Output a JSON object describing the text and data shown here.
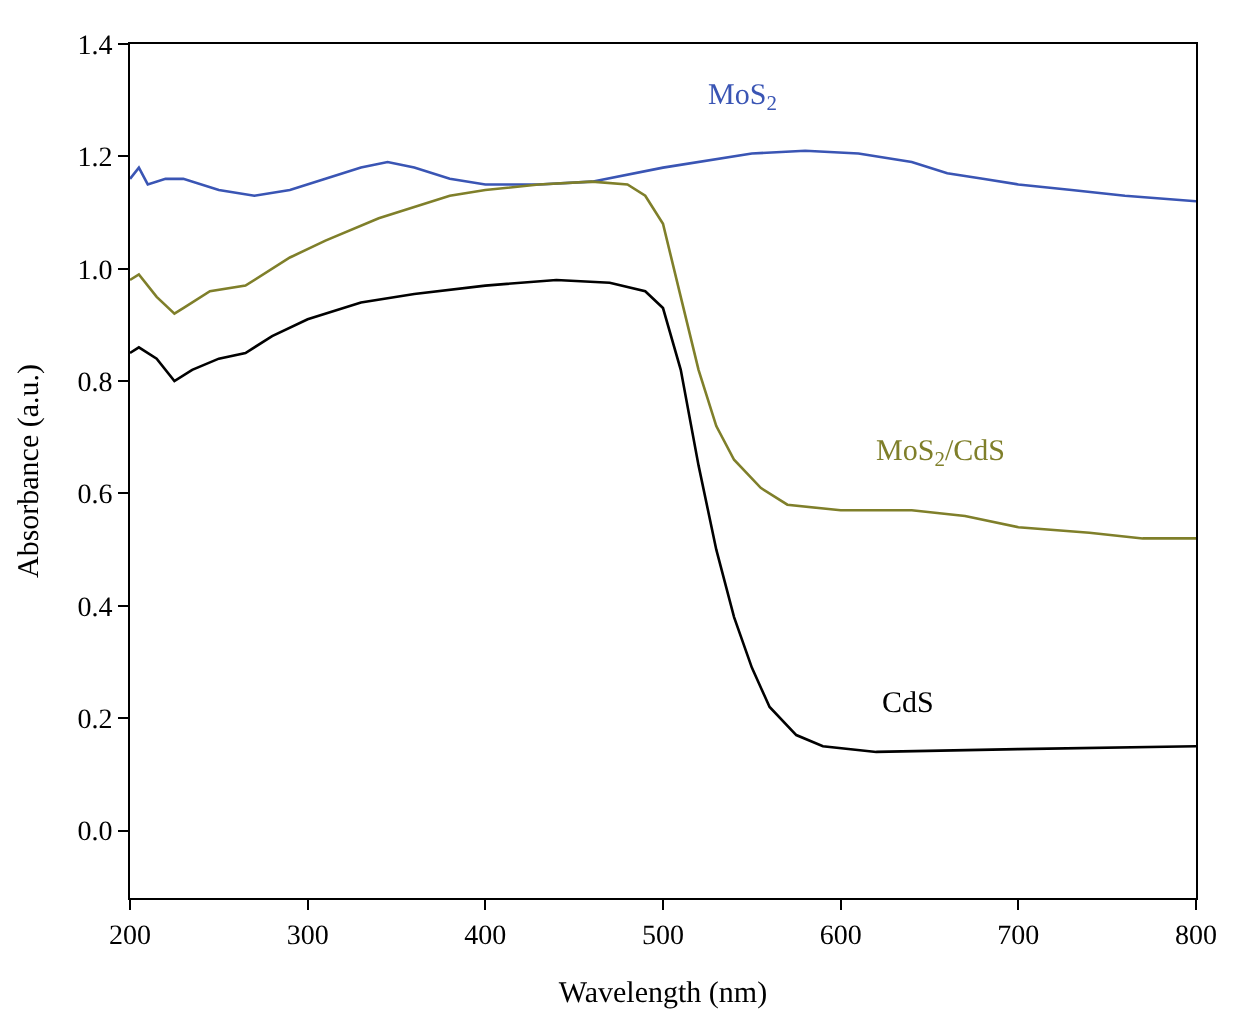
{
  "chart_data": {
    "type": "line",
    "xlabel": "Wavelength (nm)",
    "ylabel": "Absorbance (a.u.)",
    "xlim": [
      200,
      800
    ],
    "xticks": [
      200,
      300,
      400,
      500,
      600,
      700,
      800
    ],
    "ylim": [
      -0.12,
      1.4
    ],
    "yticks": [
      {
        "value": 0,
        "label": "0.0"
      },
      0.2,
      0.4,
      0.6,
      0.8,
      {
        "value": 1,
        "label": "1.0"
      },
      1.2,
      1.4
    ],
    "legend": false,
    "marker": "none",
    "line_style": "solid",
    "series": [
      {
        "name": "MoS$_{2}$",
        "color": "#3a55b4",
        "x": [
          200,
          205,
          210,
          220,
          230,
          250,
          270,
          290,
          310,
          330,
          345,
          360,
          380,
          400,
          430,
          460,
          500,
          550,
          580,
          610,
          640,
          660,
          680,
          700,
          730,
          760,
          800
        ],
        "values": [
          1.16,
          1.18,
          1.15,
          1.16,
          1.16,
          1.14,
          1.13,
          1.14,
          1.16,
          1.18,
          1.19,
          1.18,
          1.16,
          1.15,
          1.15,
          1.155,
          1.18,
          1.205,
          1.21,
          1.205,
          1.19,
          1.17,
          1.16,
          1.15,
          1.14,
          1.13,
          1.12
        ]
      },
      {
        "name": "MoS$_{2}$/CdS",
        "color": "#7f7f2a",
        "x": [
          200,
          205,
          215,
          225,
          230,
          245,
          265,
          290,
          310,
          340,
          360,
          380,
          400,
          430,
          460,
          480,
          490,
          500,
          510,
          520,
          530,
          540,
          555,
          570,
          600,
          640,
          670,
          700,
          740,
          770,
          800
        ],
        "values": [
          0.98,
          0.99,
          0.95,
          0.92,
          0.93,
          0.96,
          0.97,
          1.02,
          1.05,
          1.09,
          1.11,
          1.13,
          1.14,
          1.15,
          1.155,
          1.15,
          1.13,
          1.08,
          0.95,
          0.82,
          0.72,
          0.66,
          0.61,
          0.58,
          0.57,
          0.57,
          0.56,
          0.54,
          0.53,
          0.52,
          0.52
        ]
      },
      {
        "name": "CdS",
        "color": "#000000",
        "x": [
          200,
          205,
          215,
          225,
          235,
          250,
          265,
          280,
          300,
          330,
          360,
          400,
          440,
          470,
          490,
          500,
          510,
          520,
          530,
          540,
          550,
          560,
          575,
          590,
          620,
          700,
          800
        ],
        "values": [
          0.85,
          0.86,
          0.84,
          0.8,
          0.82,
          0.84,
          0.85,
          0.88,
          0.91,
          0.94,
          0.955,
          0.97,
          0.98,
          0.975,
          0.96,
          0.93,
          0.82,
          0.65,
          0.5,
          0.38,
          0.29,
          0.22,
          0.17,
          0.15,
          0.14,
          0.145,
          0.15
        ]
      }
    ]
  }
}
